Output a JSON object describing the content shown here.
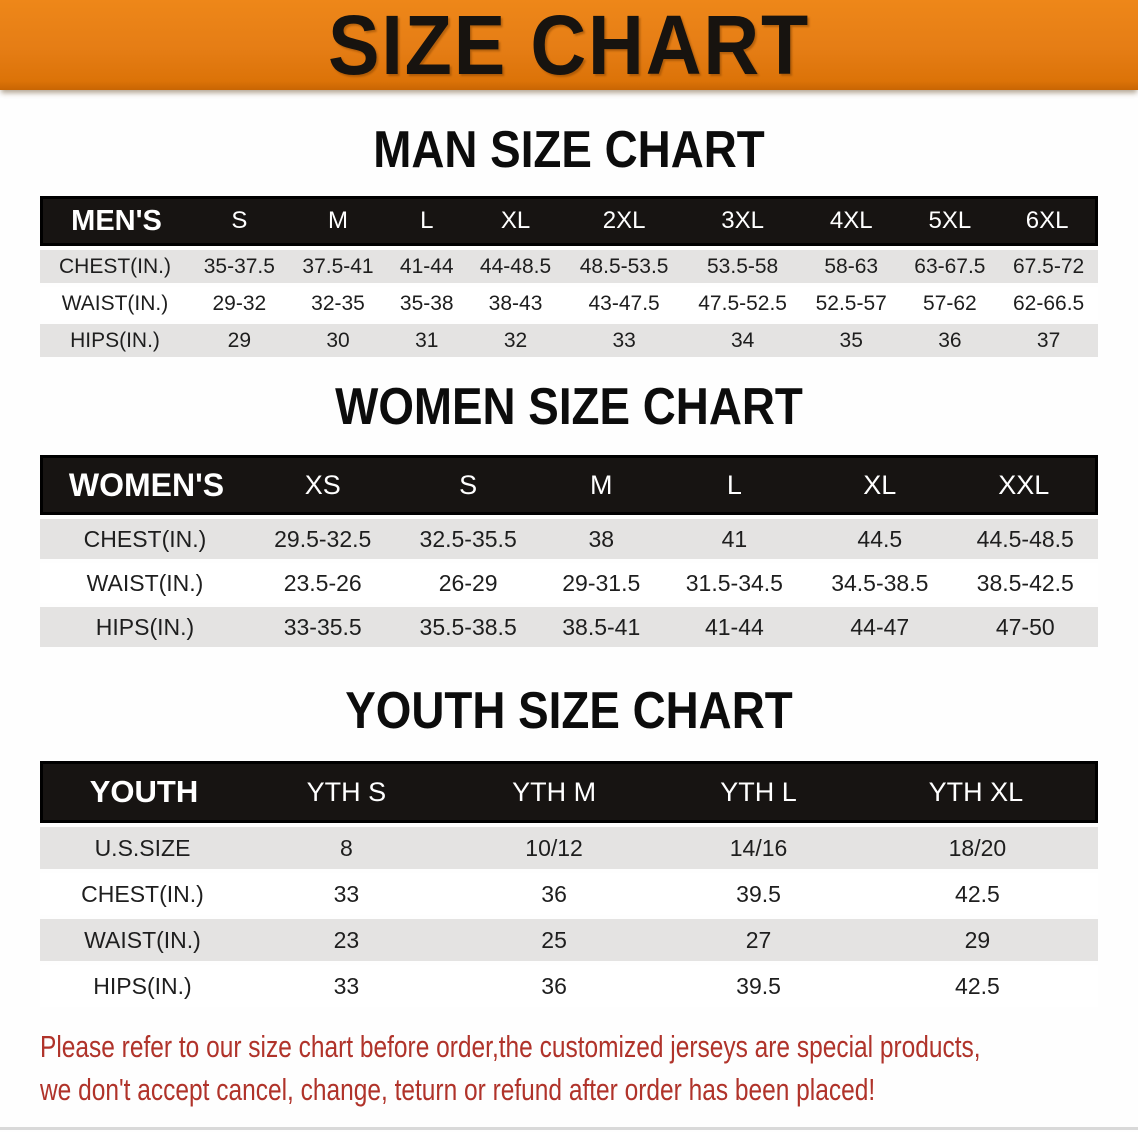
{
  "banner": {
    "title": "SIZE CHART",
    "bg_color": "#e57d15",
    "text_color": "#17130f"
  },
  "sections": [
    {
      "heading": "MAN SIZE CHART",
      "corner_label": "MEN'S",
      "columns": [
        "S",
        "M",
        "L",
        "XL",
        "2XL",
        "3XL",
        "4XL",
        "5XL",
        "6XL"
      ],
      "rows": [
        {
          "label": "CHEST(IN.)",
          "values": [
            "35-37.5",
            "37.5-41",
            "41-44",
            "44-48.5",
            "48.5-53.5",
            "53.5-58",
            "58-63",
            "63-67.5",
            "67.5-72"
          ]
        },
        {
          "label": "WAIST(IN.)",
          "values": [
            "29-32",
            "32-35",
            "35-38",
            "38-43",
            "43-47.5",
            "47.5-52.5",
            "52.5-57",
            "57-62",
            "62-66.5"
          ]
        },
        {
          "label": "HIPS(IN.)",
          "values": [
            "29",
            "30",
            "31",
            "32",
            "33",
            "34",
            "35",
            "36",
            "37"
          ]
        }
      ]
    },
    {
      "heading": "WOMEN SIZE CHART",
      "corner_label": "WOMEN'S",
      "columns": [
        "XS",
        "S",
        "M",
        "L",
        "XL",
        "XXL"
      ],
      "rows": [
        {
          "label": "CHEST(IN.)",
          "values": [
            "29.5-32.5",
            "32.5-35.5",
            "38",
            "41",
            "44.5",
            "44.5-48.5"
          ]
        },
        {
          "label": "WAIST(IN.)",
          "values": [
            "23.5-26",
            "26-29",
            "29-31.5",
            "31.5-34.5",
            "34.5-38.5",
            "38.5-42.5"
          ]
        },
        {
          "label": "HIPS(IN.)",
          "values": [
            "33-35.5",
            "35.5-38.5",
            "38.5-41",
            "41-44",
            "44-47",
            "47-50"
          ]
        }
      ]
    },
    {
      "heading": "YOUTH SIZE CHART",
      "corner_label": "YOUTH",
      "columns": [
        "YTH S",
        "YTH M",
        "YTH L",
        "YTH XL"
      ],
      "rows": [
        {
          "label": "U.S.SIZE",
          "values": [
            "8",
            "10/12",
            "14/16",
            "18/20"
          ]
        },
        {
          "label": "CHEST(IN.)",
          "values": [
            "33",
            "36",
            "39.5",
            "42.5"
          ]
        },
        {
          "label": "WAIST(IN.)",
          "values": [
            "23",
            "25",
            "27",
            "29"
          ]
        },
        {
          "label": "HIPS(IN.)",
          "values": [
            "33",
            "36",
            "39.5",
            "42.5"
          ]
        }
      ]
    }
  ],
  "disclaimer": {
    "line1": "Please refer to our size chart before order,the customized jerseys are special products,",
    "line2": "we don't accept cancel, change, teturn or refund after order has been placed!",
    "color": "#b0332a"
  }
}
